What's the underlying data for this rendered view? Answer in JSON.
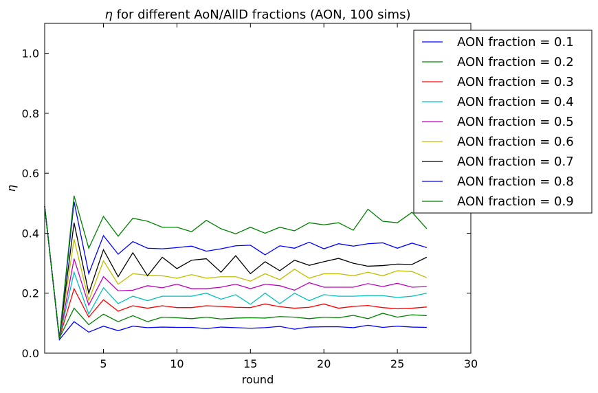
{
  "chart_data": {
    "type": "line",
    "title_prefix": "η",
    "title": " for different AoN/AllD fractions (AON, 100 sims)",
    "xlabel": "round",
    "ylabel": "η",
    "xlim": [
      1,
      30
    ],
    "ylim": [
      0.0,
      1.1
    ],
    "xticks": [
      5,
      10,
      15,
      20,
      25,
      30
    ],
    "yticks": [
      0.0,
      0.2,
      0.4,
      0.6,
      0.8,
      1.0
    ],
    "xtick_labels": [
      "5",
      "10",
      "15",
      "20",
      "25",
      "30"
    ],
    "ytick_labels": [
      "0.0",
      "0.2",
      "0.4",
      "0.6",
      "0.8",
      "1.0"
    ],
    "legend_position": "top-right, extending outside plot",
    "grid": false,
    "x": [
      1,
      2,
      3,
      4,
      5,
      6,
      7,
      8,
      9,
      10,
      11,
      12,
      13,
      14,
      15,
      16,
      17,
      18,
      19,
      20,
      21,
      22,
      23,
      24,
      25,
      26,
      27
    ],
    "series": [
      {
        "name": "AON fraction = 0.1",
        "color": "#0000ff",
        "values": [
          0.49,
          0.045,
          0.105,
          0.07,
          0.09,
          0.075,
          0.09,
          0.085,
          0.087,
          0.086,
          0.086,
          0.082,
          0.087,
          0.085,
          0.083,
          0.085,
          0.089,
          0.08,
          0.087,
          0.088,
          0.088,
          0.085,
          0.093,
          0.086,
          0.09,
          0.087,
          0.086
        ]
      },
      {
        "name": "AON fraction = 0.2",
        "color": "#008000",
        "values": [
          0.49,
          0.05,
          0.15,
          0.095,
          0.13,
          0.105,
          0.125,
          0.105,
          0.12,
          0.118,
          0.115,
          0.12,
          0.114,
          0.117,
          0.118,
          0.117,
          0.122,
          0.12,
          0.115,
          0.12,
          0.118,
          0.126,
          0.115,
          0.133,
          0.12,
          0.128,
          0.125
        ]
      },
      {
        "name": "AON fraction = 0.3",
        "color": "#ff0000",
        "values": [
          0.49,
          0.05,
          0.215,
          0.12,
          0.178,
          0.14,
          0.158,
          0.15,
          0.158,
          0.152,
          0.152,
          0.158,
          0.156,
          0.153,
          0.152,
          0.164,
          0.155,
          0.15,
          0.153,
          0.164,
          0.15,
          0.156,
          0.159,
          0.152,
          0.148,
          0.15,
          0.154
        ]
      },
      {
        "name": "AON fraction = 0.4",
        "color": "#00bfbf",
        "values": [
          0.49,
          0.05,
          0.27,
          0.13,
          0.218,
          0.165,
          0.19,
          0.175,
          0.19,
          0.19,
          0.19,
          0.2,
          0.18,
          0.195,
          0.163,
          0.2,
          0.165,
          0.2,
          0.175,
          0.195,
          0.19,
          0.19,
          0.192,
          0.192,
          0.186,
          0.19,
          0.2
        ]
      },
      {
        "name": "AON fraction = 0.5",
        "color": "#bf00bf",
        "values": [
          0.49,
          0.05,
          0.315,
          0.16,
          0.255,
          0.208,
          0.21,
          0.225,
          0.218,
          0.23,
          0.215,
          0.215,
          0.22,
          0.23,
          0.215,
          0.23,
          0.225,
          0.21,
          0.235,
          0.22,
          0.22,
          0.22,
          0.232,
          0.222,
          0.233,
          0.22,
          0.222
        ]
      },
      {
        "name": "AON fraction = 0.6",
        "color": "#bfbf00",
        "values": [
          0.49,
          0.05,
          0.38,
          0.175,
          0.308,
          0.23,
          0.265,
          0.26,
          0.258,
          0.25,
          0.262,
          0.25,
          0.255,
          0.255,
          0.24,
          0.265,
          0.245,
          0.28,
          0.25,
          0.265,
          0.265,
          0.258,
          0.27,
          0.258,
          0.275,
          0.272,
          0.252
        ]
      },
      {
        "name": "AON fraction = 0.7",
        "color": "#000000",
        "values": [
          0.49,
          0.05,
          0.435,
          0.2,
          0.345,
          0.255,
          0.335,
          0.258,
          0.32,
          0.282,
          0.31,
          0.315,
          0.27,
          0.325,
          0.265,
          0.305,
          0.275,
          0.31,
          0.293,
          0.305,
          0.316,
          0.3,
          0.29,
          0.292,
          0.297,
          0.296,
          0.32
        ]
      },
      {
        "name": "AON fraction = 0.8",
        "color": "#0000ff",
        "values": [
          0.49,
          0.05,
          0.505,
          0.265,
          0.392,
          0.33,
          0.372,
          0.35,
          0.348,
          0.352,
          0.357,
          0.34,
          0.348,
          0.358,
          0.36,
          0.328,
          0.358,
          0.35,
          0.37,
          0.348,
          0.365,
          0.357,
          0.365,
          0.368,
          0.35,
          0.367,
          0.352
        ]
      },
      {
        "name": "AON fraction = 0.9",
        "color": "#008000",
        "values": [
          0.49,
          0.05,
          0.525,
          0.35,
          0.456,
          0.39,
          0.45,
          0.44,
          0.42,
          0.42,
          0.405,
          0.443,
          0.415,
          0.398,
          0.42,
          0.4,
          0.42,
          0.408,
          0.435,
          0.428,
          0.435,
          0.41,
          0.48,
          0.44,
          0.435,
          0.47,
          0.415
        ]
      }
    ]
  }
}
